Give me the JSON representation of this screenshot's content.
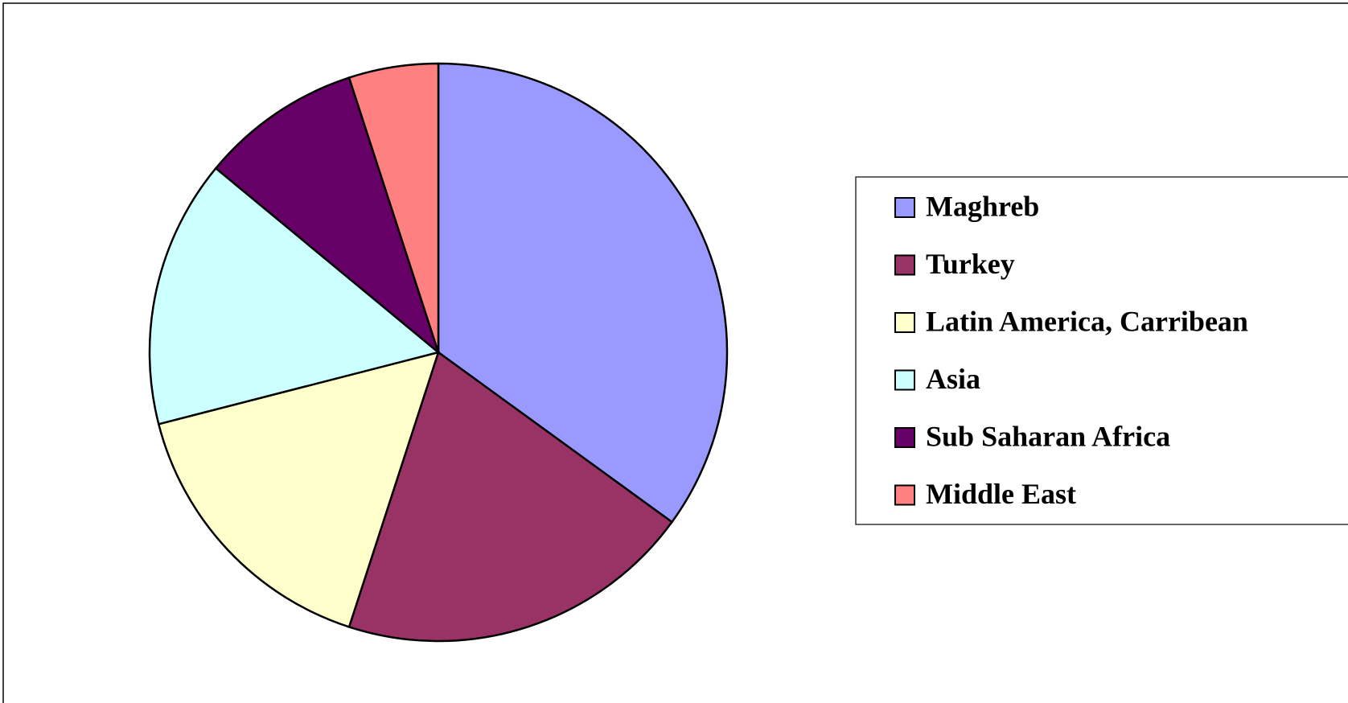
{
  "chart_data": {
    "type": "pie",
    "categories": [
      "Maghreb",
      "Turkey",
      "Latin America, Carribean",
      "Asia",
      "Sub Saharan Africa",
      "Middle East"
    ],
    "values": [
      35,
      20,
      16,
      15,
      9,
      5
    ],
    "colors": [
      "#9999ff",
      "#993366",
      "#ffffcc",
      "#ccffff",
      "#660066",
      "#ff8080"
    ],
    "legend": "right"
  }
}
